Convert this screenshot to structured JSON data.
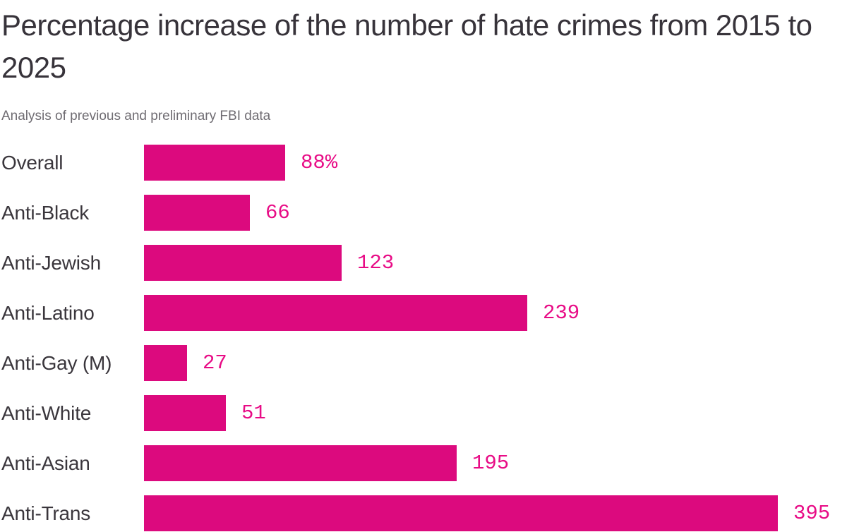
{
  "header": {
    "title": "Percentage increase of the number of hate crimes from 2015 to 2025",
    "subtitle": "Analysis of previous and preliminary FBI data"
  },
  "chart_data": {
    "type": "bar",
    "orientation": "horizontal",
    "title": "Percentage increase of the number of hate crimes from 2015 to 2025",
    "subtitle": "Analysis of previous and preliminary FBI data",
    "categories": [
      "Overall",
      "Anti-Black",
      "Anti-Jewish",
      "Anti-Latino",
      "Anti-Gay (M)",
      "Anti-White",
      "Anti-Asian",
      "Anti-Trans"
    ],
    "values": [
      88,
      66,
      123,
      239,
      27,
      51,
      195,
      395
    ],
    "value_labels": [
      "88%",
      "66",
      "123",
      "239",
      "27",
      "51",
      "195",
      "395"
    ],
    "xlabel": "",
    "ylabel": "",
    "xlim": [
      0,
      395
    ],
    "grid": false,
    "legend": false,
    "bar_color": "#dc0a7e",
    "value_text_color": "#e80c86",
    "label_text_color": "#3a363c",
    "title_color": "#37333a",
    "subtitle_color": "#6f6c72"
  }
}
